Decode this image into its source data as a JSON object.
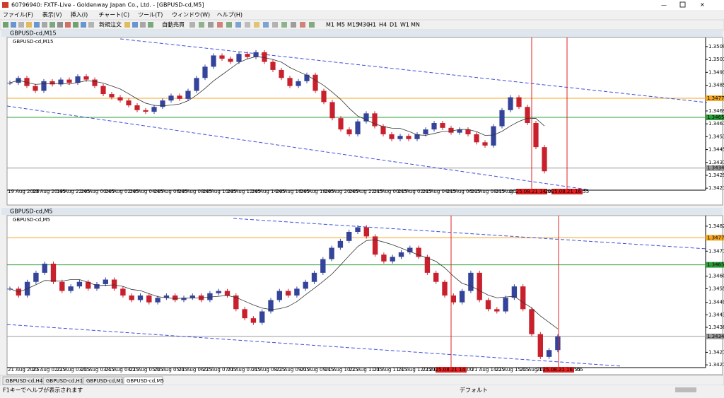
{
  "window": {
    "title": "60796940: FXTF-Live - Goldenway Japan Co., Ltd. - [GBPUSD-cd,M5]",
    "menu": [
      "ファイル(F)",
      "表示(V)",
      "挿入(I)",
      "チャート(C)",
      "ツール(T)",
      "ウィンドウ(W)",
      "ヘルプ(H)"
    ]
  },
  "toolbar": {
    "buttons": [
      "新規注文",
      "自動売買"
    ],
    "timeframes": [
      "M1",
      "M5",
      "M15",
      "M30",
      "H1",
      "H4",
      "D1",
      "W1",
      "MN"
    ]
  },
  "charts": [
    {
      "window_title": "GBPUSD-cd,M15",
      "label": "GBPUSD-cd,M15",
      "ylim": [
        1.34207,
        1.35143
      ],
      "yticks": [
        1.35095,
        1.35015,
        1.34935,
        1.34855,
        1.34775,
        1.34695,
        1.34615,
        1.34535,
        1.34455,
        1.34375,
        1.34295,
        1.34215
      ],
      "levels": [
        {
          "value": 1.34774,
          "color": "#f5a623"
        },
        {
          "value": 1.34655,
          "color": "#2e9e3a"
        },
        {
          "value": 1.3434,
          "label": "1.34340",
          "color": "#9a9a9a"
        }
      ],
      "closes": [
        1.3487,
        1.349,
        1.3485,
        1.3482,
        1.3488,
        1.3486,
        1.3489,
        1.3487,
        1.3491,
        1.3489,
        1.3485,
        1.348,
        1.3478,
        1.3476,
        1.3473,
        1.347,
        1.3469,
        1.3472,
        1.3476,
        1.3479,
        1.3477,
        1.3482,
        1.349,
        1.3497,
        1.3504,
        1.3502,
        1.35,
        1.3505,
        1.3503,
        1.3506,
        1.35,
        1.3495,
        1.349,
        1.3485,
        1.3488,
        1.3492,
        1.3482,
        1.3475,
        1.3465,
        1.3458,
        1.3455,
        1.3463,
        1.3468,
        1.346,
        1.3455,
        1.3452,
        1.3454,
        1.3452,
        1.3455,
        1.3458,
        1.3462,
        1.3459,
        1.3456,
        1.3458,
        1.3455,
        1.345,
        1.3448,
        1.346,
        1.347,
        1.3478,
        1.3472,
        1.3462,
        1.3447,
        1.3432
      ],
      "time_labels": [
        "19 Aug 2025",
        "19 Aug 20:45",
        "19 Aug 22:45",
        "20 Aug 00:45",
        "20 Aug 02:45",
        "20 Aug 04:45",
        "20 Aug 06:45",
        "20 Aug 08:45",
        "20 Aug 10:45",
        "20 Aug 12:45",
        "20 Aug 14:45",
        "20 Aug 16:45",
        "20 Aug 18:45",
        "20 Aug 20:45",
        "20 Aug 22:45",
        "21 Aug 00:45",
        "21 Aug 02:45",
        "21 Aug 04:45",
        "21 Aug 06:45",
        "21 Aug 08:45",
        "21 Aug 10:45"
      ],
      "markers": [
        "2025.08.21 14:00",
        "2025.08.21 16:55"
      ]
    },
    {
      "window_title": "GBPUSD-cd,M5",
      "label": "GBPUSD-cd,M5",
      "ylim": [
        1.34206,
        1.34859
      ],
      "yticks": [
        1.34825,
        1.34715,
        1.34605,
        {
          "value": 1.3455,
          "label": "1.34550"
        },
        {
          "value": 1.3449,
          "label": "1.34490"
        },
        1.34435,
        {
          "value": 1.3438,
          "label": "1.34380"
        },
        {
          "value": 1.3427,
          "label": "1.34270"
        },
        1.34215
      ],
      "levels": [
        {
          "value": 1.34774,
          "color": "#f5a623"
        },
        {
          "value": 1.34655,
          "color": "#2e9e3a"
        },
        {
          "value": 1.3434,
          "label": "1.34340",
          "color": "#9a9a9a"
        }
      ],
      "closes": [
        1.3455,
        1.3452,
        1.3458,
        1.3462,
        1.3466,
        1.3458,
        1.3454,
        1.3456,
        1.3458,
        1.3455,
        1.3457,
        1.3459,
        1.3455,
        1.3452,
        1.345,
        1.3452,
        1.3449,
        1.3451,
        1.3452,
        1.345,
        1.3451,
        1.3452,
        1.345,
        1.3453,
        1.3454,
        1.3452,
        1.3446,
        1.3442,
        1.344,
        1.3445,
        1.345,
        1.3454,
        1.3452,
        1.3455,
        1.3458,
        1.3462,
        1.3468,
        1.3473,
        1.3476,
        1.348,
        1.3482,
        1.3478,
        1.347,
        1.3467,
        1.3469,
        1.3471,
        1.3473,
        1.3469,
        1.3462,
        1.3458,
        1.3452,
        1.3449,
        1.3454,
        1.3462,
        1.345,
        1.3446,
        1.3445,
        1.3451,
        1.3456,
        1.3446,
        1.3435,
        1.3425,
        1.3428,
        1.3434
      ],
      "time_labels": [
        "21 Aug 2025",
        "21 Aug 02:25",
        "21 Aug 03:05",
        "21 Aug 03:45",
        "21 Aug 04:25",
        "21 Aug 05:05",
        "21 Aug 05:45",
        "21 Aug 06:25",
        "21 Aug 07:05",
        "21 Aug 07:45",
        "21 Aug 08:25",
        "21 Aug 09:05",
        "21 Aug 09:45",
        "21 Aug 10:25",
        "21 Aug 11:05",
        "21 Aug 11:45",
        "21 Aug 12:25",
        "21 Aug 13:05",
        null,
        "21 Aug 14:25",
        "21 Aug 15:05",
        "21 Aug 15:45",
        null,
        "17:05"
      ],
      "markers": [
        "2025.08.21 14:00",
        "2025.08.21 16:55"
      ]
    }
  ],
  "tabs": [
    "GBPUSD-cd,H4",
    "GBPUSD-cd,H1",
    "GBPUSD-cd,M15",
    "GBPUSD-cd,M5"
  ],
  "status": {
    "help": "F1キーでヘルプが表示されます",
    "profile": "デフォルト"
  }
}
